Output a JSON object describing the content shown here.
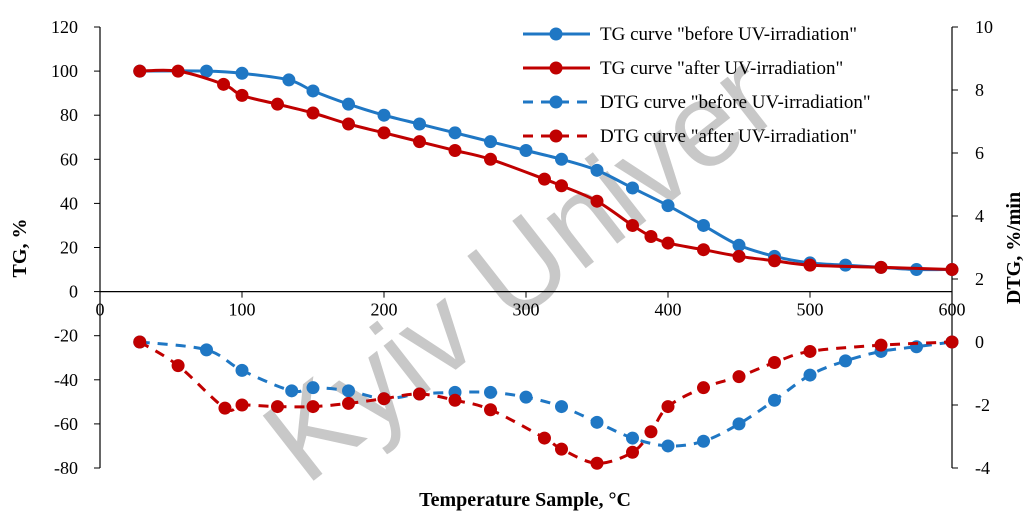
{
  "chart_data": {
    "type": "line",
    "xlabel": "Temperature Sample, °C",
    "ylabel_left": "TG, %",
    "ylabel_right": "DTG, %/min",
    "xlim": [
      0,
      600
    ],
    "ylim_left": [
      -80,
      120
    ],
    "ylim_right": [
      -4,
      10
    ],
    "x_ticks": [
      0,
      100,
      200,
      300,
      400,
      500,
      600
    ],
    "y_ticks_left": [
      -80,
      -60,
      -40,
      -20,
      0,
      20,
      40,
      60,
      80,
      100,
      120
    ],
    "y_ticks_right": [
      -4,
      -2,
      0,
      2,
      4,
      6,
      8,
      10
    ],
    "grid": false,
    "legend_position": "top-right",
    "watermark": "Kyiv Univer",
    "colors": {
      "before": "#1f77c4",
      "after": "#c00000"
    },
    "series": [
      {
        "name": "TG curve \"before UV-irradiation\"",
        "axis": "left",
        "style": "solid",
        "color": "#1f77c4",
        "x": [
          28,
          75,
          100,
          133,
          150,
          175,
          200,
          225,
          250,
          275,
          300,
          325,
          350,
          375,
          400,
          425,
          450,
          475,
          500,
          525,
          550,
          575,
          600
        ],
        "y": [
          100,
          100,
          99,
          96,
          91,
          85,
          80,
          76,
          72,
          68,
          64,
          60,
          55,
          47,
          39,
          30,
          21,
          16,
          13,
          12,
          11,
          10,
          10
        ]
      },
      {
        "name": "TG curve \"after UV-irradiation\"",
        "axis": "left",
        "style": "solid",
        "color": "#c00000",
        "x": [
          28,
          55,
          87,
          100,
          125,
          150,
          175,
          200,
          225,
          250,
          275,
          313,
          325,
          350,
          375,
          388,
          400,
          425,
          450,
          475,
          500,
          550,
          600
        ],
        "y": [
          100,
          100,
          94,
          89,
          85,
          81,
          76,
          72,
          68,
          64,
          60,
          51,
          48,
          41,
          30,
          25,
          22,
          19,
          16,
          14,
          12,
          11,
          10
        ]
      },
      {
        "name": "DTG curve \"before UV-irradiation\"",
        "axis": "right",
        "style": "dashed",
        "color": "#1f77c4",
        "x": [
          28,
          75,
          100,
          135,
          150,
          175,
          200,
          225,
          250,
          275,
          300,
          325,
          350,
          375,
          400,
          425,
          450,
          475,
          500,
          525,
          550,
          575,
          600
        ],
        "y": [
          0,
          -0.25,
          -0.9,
          -1.55,
          -1.45,
          -1.55,
          -1.8,
          -1.65,
          -1.6,
          -1.6,
          -1.75,
          -2.05,
          -2.55,
          -3.05,
          -3.3,
          -3.15,
          -2.6,
          -1.85,
          -1.05,
          -0.6,
          -0.3,
          -0.15,
          0
        ]
      },
      {
        "name": "DTG curve \"after UV-irradiation\"",
        "axis": "right",
        "style": "dashed",
        "color": "#c00000",
        "x": [
          28,
          55,
          88,
          100,
          125,
          150,
          175,
          200,
          225,
          250,
          275,
          313,
          325,
          350,
          375,
          388,
          400,
          425,
          450,
          475,
          500,
          550,
          600
        ],
        "y": [
          0,
          -0.75,
          -2.1,
          -2.0,
          -2.05,
          -2.05,
          -1.95,
          -1.8,
          -1.65,
          -1.85,
          -2.15,
          -3.05,
          -3.4,
          -3.85,
          -3.5,
          -2.85,
          -2.05,
          -1.45,
          -1.1,
          -0.65,
          -0.3,
          -0.1,
          0
        ]
      }
    ]
  }
}
